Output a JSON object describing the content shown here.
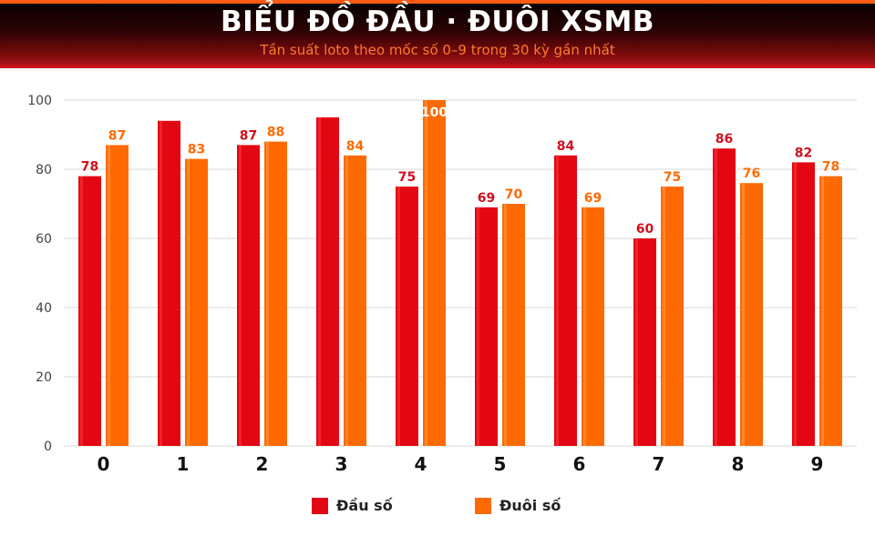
{
  "header": {
    "title": "BIỂU ĐỒ ĐẦU · ĐUÔI XSMB",
    "subtitle": "Tần suất loto theo mốc số 0–9 trong 30 kỳ gần nhất"
  },
  "colors": {
    "head": "#e30613",
    "head_highlight": "#ff3b3b",
    "tail": "#ff6a00",
    "tail_highlight": "#ff9a4a",
    "head_label": "#d0101c",
    "tail_label": "#ff6a00",
    "grid": "#d9d9d9",
    "axis_text": "#444444"
  },
  "chart_data": {
    "type": "bar",
    "title": "BIỂU ĐỒ ĐẦU · ĐUÔI XSMB",
    "subtitle": "Tần suất loto theo mốc số 0–9 trong 30 kỳ gần nhất",
    "categories": [
      "0",
      "1",
      "2",
      "3",
      "4",
      "5",
      "6",
      "7",
      "8",
      "9"
    ],
    "series": [
      {
        "name": "Đầu số",
        "values": [
          78,
          94,
          87,
          95,
          75,
          69,
          84,
          60,
          86,
          82
        ],
        "labels": [
          "78",
          "",
          "87",
          "",
          "75",
          "69",
          "84",
          "60",
          "86",
          "82"
        ]
      },
      {
        "name": "Đuôi số",
        "values": [
          87,
          83,
          88,
          84,
          100,
          70,
          69,
          75,
          76,
          78
        ],
        "labels": [
          "87",
          "83",
          "88",
          "84",
          "100",
          "70",
          "69",
          "75",
          "76",
          "78"
        ]
      }
    ],
    "yticks": [
      0,
      20,
      40,
      60,
      80,
      100
    ],
    "ylim": [
      0,
      100
    ],
    "grid": true,
    "legend": "bottom-center"
  }
}
